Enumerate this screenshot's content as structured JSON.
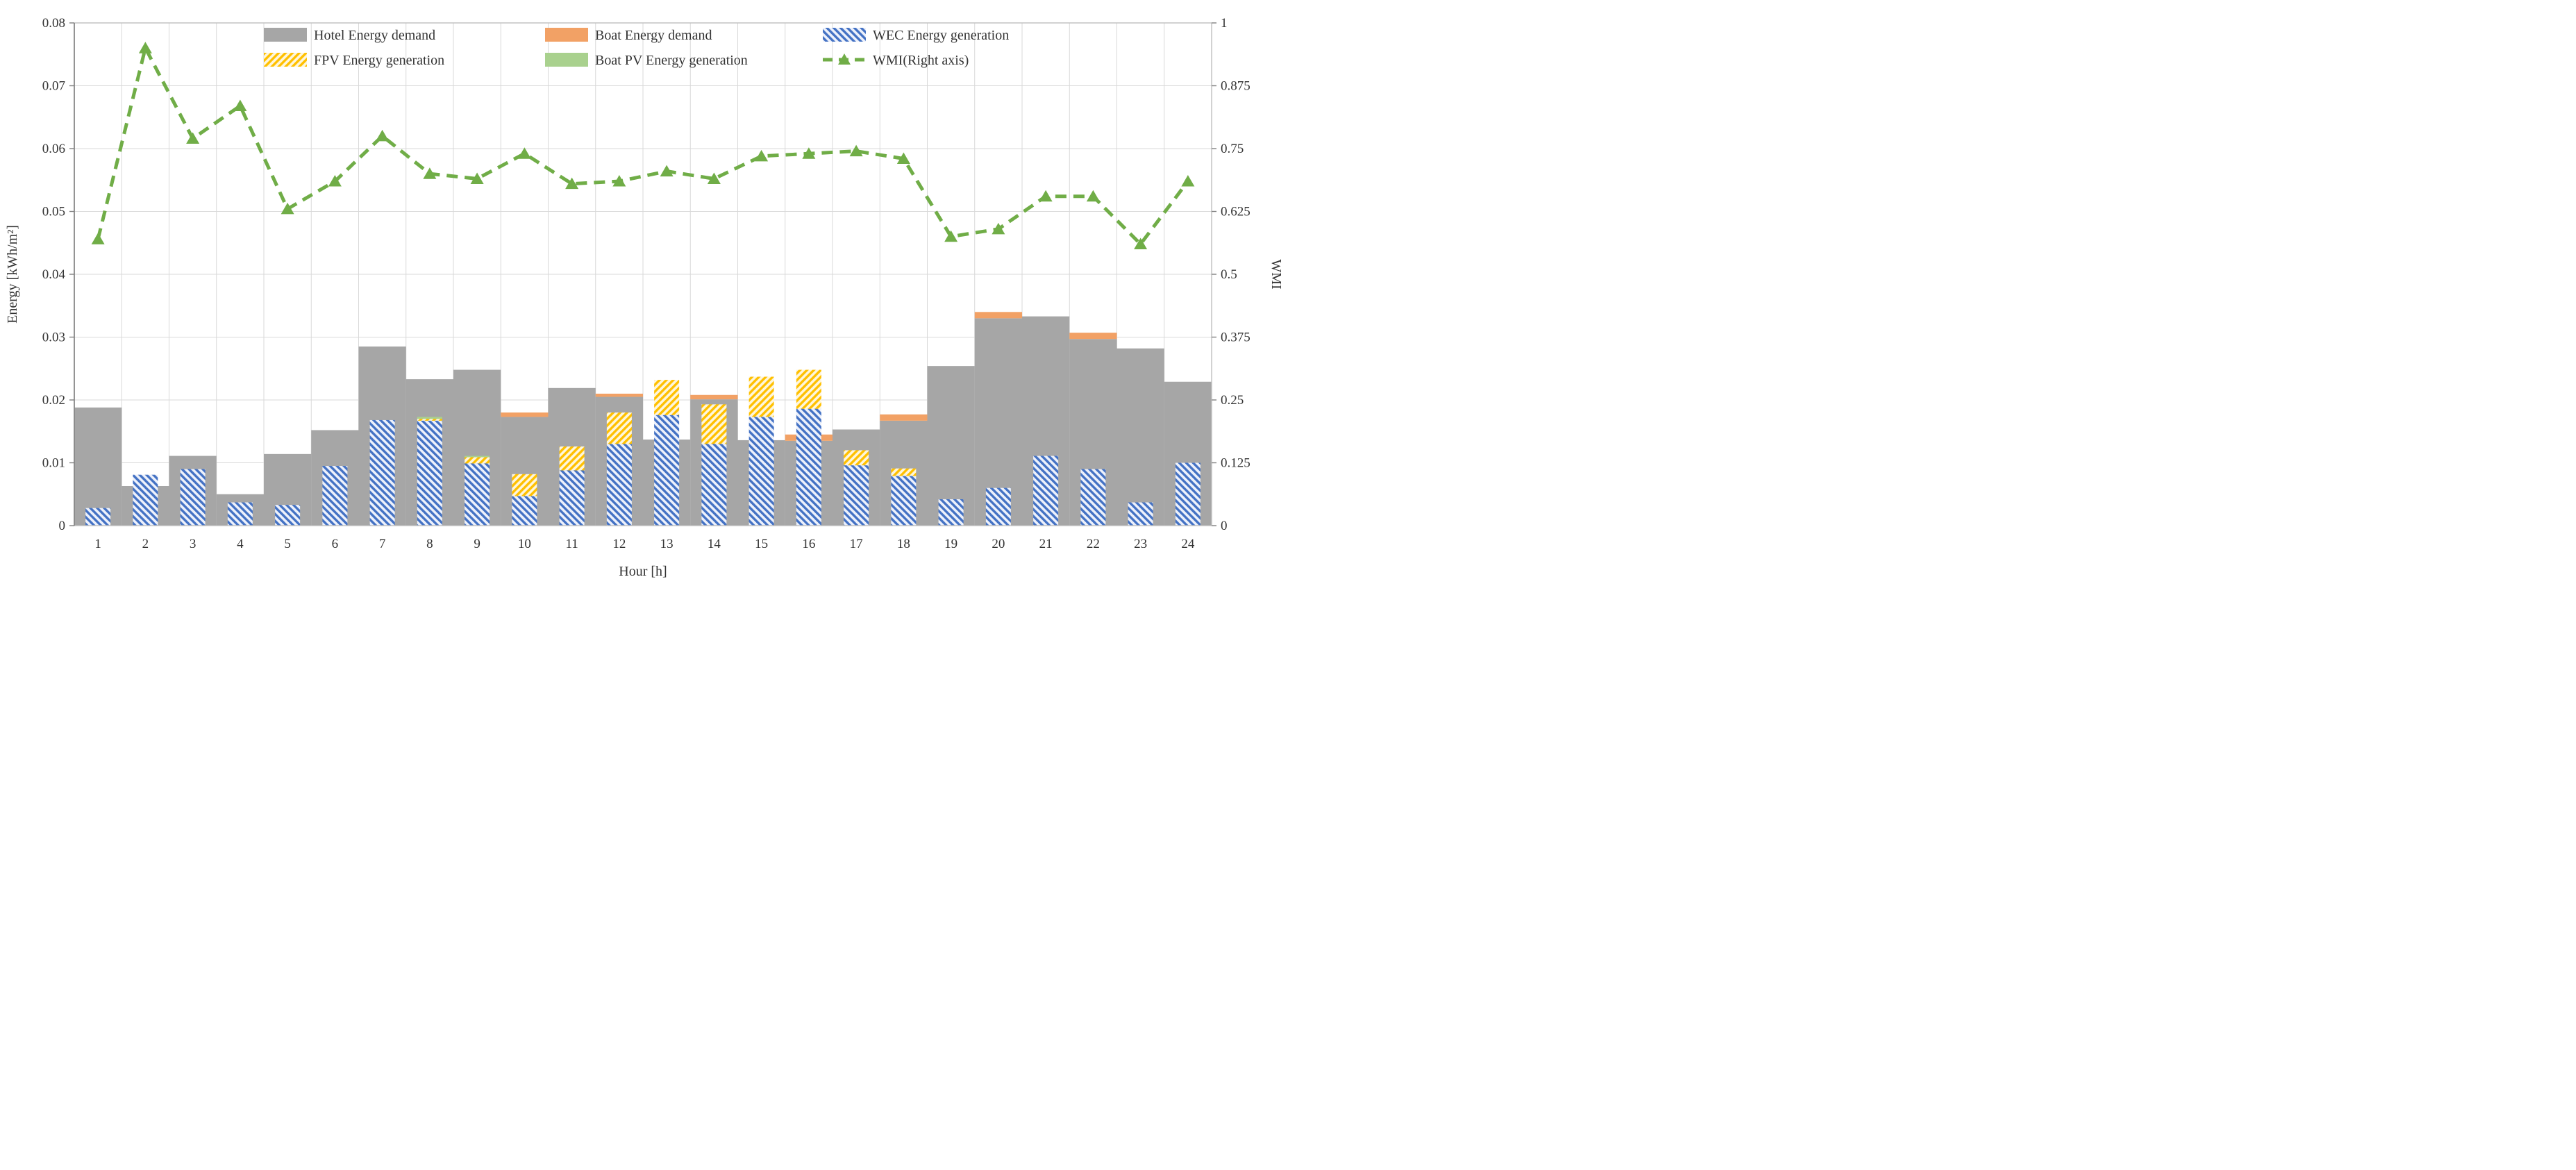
{
  "figure": {
    "x_axis_title": "Hour [h]",
    "y_left_axis_title": "Energy [kWh/m²]",
    "y_right_axis_title": "WMI"
  },
  "chart_data": {
    "type": "bar",
    "subtype": "combo-stacked-bars-with-right-axis-line",
    "title": "",
    "xlabel": "Hour [h]",
    "ylabel_left": "Energy [kWh/m²]",
    "ylabel_right": "WMI",
    "categories": [
      1,
      2,
      3,
      4,
      5,
      6,
      7,
      8,
      9,
      10,
      11,
      12,
      13,
      14,
      15,
      16,
      17,
      18,
      19,
      20,
      21,
      22,
      23,
      24
    ],
    "y_left_axis": {
      "min": 0,
      "max": 0.08,
      "tick_labels": [
        "0",
        "0.01",
        "0.02",
        "0.03",
        "0.04",
        "0.05",
        "0.06",
        "0.07",
        "0.08"
      ],
      "grid": true
    },
    "y_right_axis": {
      "min": 0,
      "max": 1,
      "tick_labels": [
        "0",
        "0.125",
        "0.25",
        "0.375",
        "0.5",
        "0.625",
        "0.75",
        "0.875",
        "1"
      ],
      "grid": false
    },
    "legend_position": "top-center, 3 columns x 2 rows",
    "series": [
      {
        "name": "Hotel Energy demand",
        "type": "bar",
        "stack": "demand",
        "fill": "solid",
        "color": "#A6A6A6",
        "values": [
          0.0188,
          0.0063,
          0.0111,
          0.005,
          0.0114,
          0.0152,
          0.0285,
          0.0233,
          0.0248,
          0.0173,
          0.0219,
          0.0205,
          0.0137,
          0.0201,
          0.0136,
          0.0135,
          0.0153,
          0.0167,
          0.0254,
          0.033,
          0.0333,
          0.0297,
          0.0282,
          0.0229
        ]
      },
      {
        "name": "Boat Energy demand",
        "type": "bar",
        "stack": "demand",
        "fill": "solid",
        "color": "#F2A165",
        "values": [
          0,
          0,
          0,
          0,
          0,
          0,
          0,
          0,
          0,
          0.0007,
          0,
          0.0005,
          0,
          0.0007,
          0,
          0.001,
          0,
          0.001,
          0,
          0.001,
          0,
          0.001,
          0,
          0
        ]
      },
      {
        "name": "WEC Energy generation",
        "type": "bar",
        "stack": "generation",
        "fill": "hatch-forward",
        "color": "#4472C4",
        "values": [
          0.0028,
          0.0081,
          0.009,
          0.0037,
          0.0033,
          0.0095,
          0.0168,
          0.0167,
          0.0099,
          0.0047,
          0.0088,
          0.013,
          0.0176,
          0.013,
          0.0173,
          0.0186,
          0.0096,
          0.0079,
          0.0042,
          0.006,
          0.0111,
          0.009,
          0.0037,
          0.01
        ]
      },
      {
        "name": "FPV Energy generation",
        "type": "bar",
        "stack": "generation",
        "fill": "hatch-back",
        "color": "#FFC000",
        "values": [
          0,
          0,
          0,
          0,
          0,
          0,
          0,
          0.0003,
          0.001,
          0.0035,
          0.0038,
          0.005,
          0.0056,
          0.0063,
          0.0064,
          0.0062,
          0.0024,
          0.0012,
          0,
          0,
          0,
          0,
          0,
          0
        ]
      },
      {
        "name": "Boat PV Energy generation",
        "type": "bar",
        "stack": "generation",
        "fill": "solid",
        "color": "#A9D18E",
        "values": [
          0,
          0,
          0,
          0,
          0,
          0,
          0,
          0.0003,
          0.0002,
          0,
          0,
          0,
          0,
          0,
          0,
          0,
          0,
          0,
          0,
          0,
          0,
          0,
          0,
          0
        ]
      },
      {
        "name": "WMI(Right axis)",
        "type": "line",
        "axis": "right",
        "style": "dashed",
        "marker": "triangle-up",
        "color": "#70AD47",
        "values": [
          0.57,
          0.95,
          0.77,
          0.835,
          0.63,
          0.685,
          0.775,
          0.7,
          0.69,
          0.74,
          0.68,
          0.685,
          0.705,
          0.69,
          0.735,
          0.74,
          0.745,
          0.73,
          0.575,
          0.59,
          0.655,
          0.655,
          0.56,
          0.685
        ]
      }
    ],
    "colors": {
      "hotel_bar": "#A6A6A6",
      "boat_bar": "#F2A165",
      "wec_hatch": "#4472C4",
      "wec_hatch_bg": "#EDF1FB",
      "fpv_hatch": "#FFC000",
      "fpv_hatch_bg": "#FEF6DC",
      "boat_pv": "#A9D18E",
      "wmi_line": "#70AD47",
      "gridline": "#D9D9D9",
      "plot_border": "#BFBFBF",
      "axis_line": "#808080",
      "text": "#333333"
    }
  }
}
